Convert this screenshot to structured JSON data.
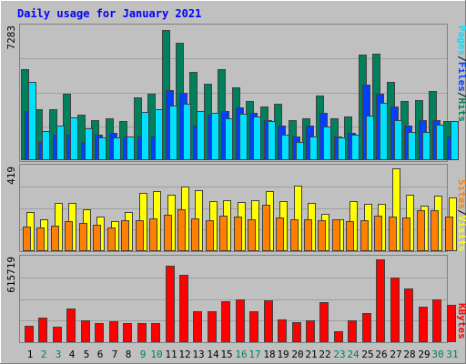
{
  "chart_data": {
    "type": "bar",
    "title": "Daily usage for January 2021",
    "days": [
      {
        "label": "1",
        "weekend": false
      },
      {
        "label": "2",
        "weekend": true
      },
      {
        "label": "3",
        "weekend": true
      },
      {
        "label": "4",
        "weekend": false
      },
      {
        "label": "5",
        "weekend": false
      },
      {
        "label": "6",
        "weekend": false
      },
      {
        "label": "7",
        "weekend": false
      },
      {
        "label": "8",
        "weekend": false
      },
      {
        "label": "9",
        "weekend": true
      },
      {
        "label": "10",
        "weekend": true
      },
      {
        "label": "11",
        "weekend": false
      },
      {
        "label": "12",
        "weekend": false
      },
      {
        "label": "13",
        "weekend": false
      },
      {
        "label": "14",
        "weekend": false
      },
      {
        "label": "15",
        "weekend": false
      },
      {
        "label": "16",
        "weekend": true
      },
      {
        "label": "17",
        "weekend": true
      },
      {
        "label": "18",
        "weekend": false
      },
      {
        "label": "19",
        "weekend": false
      },
      {
        "label": "20",
        "weekend": false
      },
      {
        "label": "21",
        "weekend": false
      },
      {
        "label": "22",
        "weekend": false
      },
      {
        "label": "23",
        "weekend": true
      },
      {
        "label": "24",
        "weekend": true
      },
      {
        "label": "25",
        "weekend": false
      },
      {
        "label": "26",
        "weekend": false
      },
      {
        "label": "27",
        "weekend": false
      },
      {
        "label": "28",
        "weekend": false
      },
      {
        "label": "29",
        "weekend": false
      },
      {
        "label": "30",
        "weekend": true
      },
      {
        "label": "31",
        "weekend": true
      }
    ],
    "panels": [
      {
        "id": "hits-files-pages",
        "max_label": "7283",
        "ymax": 7283,
        "series": [
          {
            "name": "Hits",
            "color": "#00805c",
            "values": [
              5000,
              2800,
              2800,
              3660,
              2500,
              2200,
              2330,
              2160,
              3450,
              3660,
              7200,
              6460,
              4860,
              4230,
              5000,
              4010,
              3250,
              2960,
              3100,
              2200,
              2300,
              3590,
              2300,
              2400,
              5820,
              5900,
              4330,
              3260,
              3300,
              3830,
              2160
            ]
          },
          {
            "name": "Files",
            "color": "#0040ff",
            "values": [
              2700,
              1000,
              1400,
              1400,
              1000,
              1400,
              1500,
              1300,
              1300,
              1300,
              3850,
              3700,
              1900,
              2500,
              2700,
              2900,
              2600,
              2200,
              1900,
              1300,
              1900,
              2600,
              1300,
              1500,
              4170,
              3660,
              2940,
              1900,
              2200,
              2210,
              1300
            ]
          },
          {
            "name": "Pages",
            "color": "#00e0ff",
            "values": [
              4300,
              1600,
              1900,
              2350,
              1740,
              1240,
              1240,
              1330,
              2670,
              2830,
              2990,
              3100,
              2700,
              2590,
              2300,
              2580,
              2420,
              2170,
              1410,
              1020,
              1300,
              1880,
              1240,
              1410,
              2470,
              3180,
              2200,
              1580,
              1580,
              1970,
              2170
            ]
          }
        ]
      },
      {
        "id": "visits-sites",
        "max_label": "419",
        "ymax": 419,
        "series": [
          {
            "name": "Visits",
            "color": "#ffff00",
            "values": [
              200,
              160,
              245,
              245,
              210,
              175,
              150,
              200,
              295,
              305,
              285,
              325,
              310,
              255,
              260,
              250,
              260,
              305,
              255,
              330,
              245,
              190,
              160,
              255,
              240,
              240,
              419,
              285,
              230,
              280,
              270
            ]
          },
          {
            "name": "Sites",
            "color": "#ff8000",
            "values": [
              125,
              120,
              130,
              150,
              145,
              135,
              120,
              155,
              155,
              165,
              185,
              210,
              165,
              155,
              180,
              175,
              160,
              235,
              170,
              160,
              160,
              155,
              160,
              150,
              155,
              180,
              175,
              170,
              205,
              205,
              175
            ]
          }
        ]
      },
      {
        "id": "kbytes",
        "max_label": "615719",
        "ymax": 615719,
        "series": [
          {
            "name": "KBytes",
            "color": "#ff0000",
            "values": [
              120000,
              180000,
              115000,
              250000,
              160000,
              145000,
              155000,
              140000,
              140000,
              140000,
              570000,
              500000,
              230000,
              230000,
              305000,
              320000,
              230000,
              310000,
              170000,
              150000,
              165000,
              300000,
              80000,
              160000,
              215000,
              615719,
              480000,
              400000,
              265000,
              315000,
              280000
            ]
          }
        ]
      }
    ],
    "side_labels": [
      {
        "parts": [
          {
            "text": "Pages",
            "color": "#00e0ff"
          },
          {
            "text": "/",
            "color": "#000000"
          },
          {
            "text": "Files",
            "color": "#0040ff"
          },
          {
            "text": "/",
            "color": "#000000"
          },
          {
            "text": "Hits",
            "color": "#00805c"
          }
        ]
      },
      {
        "parts": [
          {
            "text": "Sites",
            "color": "#ff8000"
          },
          {
            "text": "/",
            "color": "#000000"
          },
          {
            "text": "Visits",
            "color": "#ffff00"
          }
        ]
      },
      {
        "parts": [
          {
            "text": "KBytes",
            "color": "#ff0000"
          }
        ]
      }
    ],
    "colors": {
      "background": "#c0c0c0",
      "title": "#0000ff",
      "weekday_label": "#000000",
      "weekend_label": "#00805c",
      "grid": "#a0a0a0"
    },
    "grid": true
  }
}
